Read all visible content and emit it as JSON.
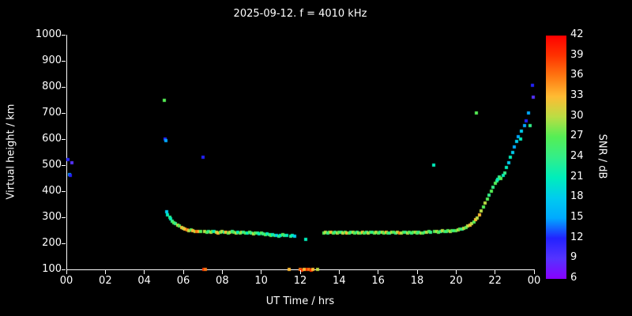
{
  "chart_data": {
    "type": "scatter",
    "title": "2025-09-12. f = 4010 kHz",
    "xlabel": "UT Time / hrs",
    "ylabel": "Virtual height / km",
    "colorbar_label": "SNR / dB",
    "xlim": [
      0,
      24
    ],
    "ylim": [
      100,
      1000
    ],
    "x_tick_values": [
      0,
      2,
      4,
      6,
      8,
      10,
      12,
      14,
      16,
      18,
      20,
      22,
      24
    ],
    "x_tick_labels": [
      "00",
      "02",
      "04",
      "06",
      "08",
      "10",
      "12",
      "14",
      "16",
      "18",
      "20",
      "22",
      "00"
    ],
    "y_tick_values": [
      100,
      200,
      300,
      400,
      500,
      600,
      700,
      800,
      900,
      1000
    ],
    "colorbar_tick_values": [
      6,
      9,
      12,
      15,
      18,
      21,
      24,
      27,
      30,
      33,
      36,
      39,
      42
    ],
    "colorbar_range": [
      6,
      42
    ],
    "background": "#000000",
    "axis_color": "#ffffff",
    "colormap": [
      {
        "v": 6,
        "c": "#8800ff"
      },
      {
        "v": 9,
        "c": "#5533ff"
      },
      {
        "v": 12,
        "c": "#2222ff"
      },
      {
        "v": 15,
        "c": "#00aaff"
      },
      {
        "v": 18,
        "c": "#00ccee"
      },
      {
        "v": 21,
        "c": "#00eebb"
      },
      {
        "v": 24,
        "c": "#33ee88"
      },
      {
        "v": 27,
        "c": "#55ee55"
      },
      {
        "v": 30,
        "c": "#bbdd44"
      },
      {
        "v": 33,
        "c": "#ffbb33"
      },
      {
        "v": 36,
        "c": "#ff7711"
      },
      {
        "v": 39,
        "c": "#ff3300"
      },
      {
        "v": 42,
        "c": "#ff0000"
      }
    ],
    "points": [
      [
        0.1,
        520,
        12
      ],
      [
        0.15,
        465,
        15
      ],
      [
        0.2,
        460,
        12
      ],
      [
        0.3,
        510,
        9
      ],
      [
        5.02,
        750,
        27
      ],
      [
        5.05,
        600,
        12
      ],
      [
        5.1,
        595,
        15
      ],
      [
        5.15,
        320,
        18
      ],
      [
        5.2,
        310,
        21
      ],
      [
        5.3,
        300,
        24
      ],
      [
        5.35,
        295,
        21
      ],
      [
        5.45,
        285,
        24
      ],
      [
        5.5,
        280,
        27
      ],
      [
        5.6,
        275,
        24
      ],
      [
        5.7,
        270,
        30
      ],
      [
        5.8,
        268,
        27
      ],
      [
        5.9,
        262,
        33
      ],
      [
        6.0,
        258,
        30
      ],
      [
        6.1,
        255,
        33
      ],
      [
        6.2,
        252,
        36
      ],
      [
        6.3,
        250,
        30
      ],
      [
        6.4,
        252,
        27
      ],
      [
        6.5,
        248,
        33
      ],
      [
        6.6,
        246,
        30
      ],
      [
        6.7,
        245,
        36
      ],
      [
        6.8,
        244,
        33
      ],
      [
        6.9,
        246,
        27
      ],
      [
        7.0,
        530,
        12
      ],
      [
        7.05,
        100,
        39
      ],
      [
        7.15,
        100,
        36
      ],
      [
        7.1,
        245,
        30
      ],
      [
        7.2,
        243,
        27
      ],
      [
        7.3,
        245,
        24
      ],
      [
        7.4,
        242,
        30
      ],
      [
        7.5,
        244,
        27
      ],
      [
        7.6,
        246,
        21
      ],
      [
        7.7,
        243,
        30
      ],
      [
        7.8,
        240,
        33
      ],
      [
        7.9,
        242,
        27
      ],
      [
        8.0,
        244,
        30
      ],
      [
        8.1,
        241,
        24
      ],
      [
        8.2,
        243,
        33
      ],
      [
        8.3,
        240,
        27
      ],
      [
        8.4,
        242,
        30
      ],
      [
        8.5,
        244,
        24
      ],
      [
        8.6,
        241,
        27
      ],
      [
        8.7,
        239,
        30
      ],
      [
        8.8,
        242,
        21
      ],
      [
        8.9,
        240,
        27
      ],
      [
        9.0,
        243,
        30
      ],
      [
        9.1,
        241,
        24
      ],
      [
        9.2,
        238,
        27
      ],
      [
        9.3,
        240,
        21
      ],
      [
        9.4,
        242,
        27
      ],
      [
        9.5,
        239,
        24
      ],
      [
        9.6,
        237,
        30
      ],
      [
        9.7,
        240,
        27
      ],
      [
        9.8,
        238,
        24
      ],
      [
        9.9,
        236,
        21
      ],
      [
        10.0,
        238,
        27
      ],
      [
        10.1,
        236,
        24
      ],
      [
        10.2,
        234,
        27
      ],
      [
        10.3,
        236,
        21
      ],
      [
        10.4,
        233,
        24
      ],
      [
        10.5,
        230,
        27
      ],
      [
        10.6,
        232,
        21
      ],
      [
        10.7,
        229,
        24
      ],
      [
        10.8,
        231,
        18
      ],
      [
        10.9,
        228,
        24
      ],
      [
        11.0,
        230,
        21
      ],
      [
        11.1,
        232,
        27
      ],
      [
        11.2,
        229,
        24
      ],
      [
        11.3,
        231,
        21
      ],
      [
        11.45,
        100,
        33
      ],
      [
        11.5,
        228,
        24
      ],
      [
        11.6,
        230,
        21
      ],
      [
        11.7,
        227,
        18
      ],
      [
        12.0,
        100,
        36
      ],
      [
        12.1,
        98,
        39
      ],
      [
        12.2,
        100,
        33
      ],
      [
        12.3,
        215,
        21
      ],
      [
        12.35,
        100,
        39
      ],
      [
        12.45,
        100,
        36
      ],
      [
        12.55,
        98,
        39
      ],
      [
        12.65,
        100,
        33
      ],
      [
        12.9,
        100,
        30
      ],
      [
        13.2,
        240,
        27
      ],
      [
        13.3,
        242,
        30
      ],
      [
        13.4,
        240,
        24
      ],
      [
        13.5,
        243,
        27
      ],
      [
        13.6,
        241,
        33
      ],
      [
        13.7,
        239,
        27
      ],
      [
        13.8,
        242,
        24
      ],
      [
        13.9,
        240,
        30
      ],
      [
        14.0,
        243,
        27
      ],
      [
        14.1,
        241,
        24
      ],
      [
        14.2,
        239,
        30
      ],
      [
        14.3,
        242,
        27
      ],
      [
        14.4,
        240,
        33
      ],
      [
        14.5,
        238,
        27
      ],
      [
        14.6,
        241,
        24
      ],
      [
        14.7,
        243,
        30
      ],
      [
        14.8,
        240,
        27
      ],
      [
        14.9,
        242,
        24
      ],
      [
        15.0,
        240,
        30
      ],
      [
        15.1,
        238,
        27
      ],
      [
        15.2,
        241,
        33
      ],
      [
        15.3,
        239,
        27
      ],
      [
        15.4,
        242,
        24
      ],
      [
        15.5,
        240,
        30
      ],
      [
        15.6,
        243,
        27
      ],
      [
        15.7,
        241,
        24
      ],
      [
        15.8,
        239,
        27
      ],
      [
        15.9,
        242,
        30
      ],
      [
        16.0,
        240,
        27
      ],
      [
        16.1,
        243,
        24
      ],
      [
        16.2,
        241,
        30
      ],
      [
        16.3,
        239,
        27
      ],
      [
        16.4,
        242,
        33
      ],
      [
        16.5,
        240,
        27
      ],
      [
        16.6,
        238,
        24
      ],
      [
        16.7,
        241,
        30
      ],
      [
        16.8,
        243,
        27
      ],
      [
        16.9,
        240,
        24
      ],
      [
        17.0,
        242,
        30
      ],
      [
        17.1,
        240,
        36
      ],
      [
        17.2,
        238,
        30
      ],
      [
        17.3,
        241,
        27
      ],
      [
        17.4,
        243,
        24
      ],
      [
        17.5,
        240,
        30
      ],
      [
        17.6,
        242,
        27
      ],
      [
        17.7,
        239,
        24
      ],
      [
        17.8,
        241,
        27
      ],
      [
        17.9,
        243,
        30
      ],
      [
        18.0,
        240,
        27
      ],
      [
        18.1,
        242,
        24
      ],
      [
        18.2,
        240,
        30
      ],
      [
        18.3,
        238,
        27
      ],
      [
        18.4,
        241,
        24
      ],
      [
        18.5,
        243,
        30
      ],
      [
        18.6,
        245,
        27
      ],
      [
        18.7,
        242,
        24
      ],
      [
        18.85,
        500,
        21
      ],
      [
        18.9,
        244,
        27
      ],
      [
        19.0,
        246,
        30
      ],
      [
        19.1,
        243,
        27
      ],
      [
        19.2,
        245,
        24
      ],
      [
        19.3,
        247,
        30
      ],
      [
        19.4,
        244,
        27
      ],
      [
        19.5,
        246,
        24
      ],
      [
        19.6,
        248,
        27
      ],
      [
        19.7,
        245,
        30
      ],
      [
        19.8,
        247,
        27
      ],
      [
        19.9,
        249,
        24
      ],
      [
        20.0,
        250,
        27
      ],
      [
        20.1,
        252,
        30
      ],
      [
        20.2,
        254,
        27
      ],
      [
        20.3,
        256,
        24
      ],
      [
        20.4,
        258,
        30
      ],
      [
        20.5,
        262,
        27
      ],
      [
        20.6,
        266,
        30
      ],
      [
        20.7,
        270,
        33
      ],
      [
        20.8,
        276,
        30
      ],
      [
        20.9,
        282,
        27
      ],
      [
        21.0,
        290,
        33
      ],
      [
        21.05,
        700,
        27
      ],
      [
        21.1,
        298,
        30
      ],
      [
        21.2,
        310,
        33
      ],
      [
        21.3,
        325,
        30
      ],
      [
        21.4,
        340,
        27
      ],
      [
        21.5,
        355,
        30
      ],
      [
        21.6,
        370,
        27
      ],
      [
        21.7,
        385,
        24
      ],
      [
        21.8,
        400,
        27
      ],
      [
        21.9,
        415,
        24
      ],
      [
        22.0,
        430,
        27
      ],
      [
        22.1,
        440,
        24
      ],
      [
        22.15,
        445,
        21
      ],
      [
        22.2,
        455,
        24
      ],
      [
        22.3,
        450,
        27
      ],
      [
        22.4,
        460,
        21
      ],
      [
        22.5,
        470,
        24
      ],
      [
        22.6,
        490,
        21
      ],
      [
        22.7,
        510,
        18
      ],
      [
        22.8,
        530,
        21
      ],
      [
        22.9,
        550,
        18
      ],
      [
        23.0,
        570,
        15
      ],
      [
        23.1,
        590,
        18
      ],
      [
        23.2,
        610,
        15
      ],
      [
        23.3,
        600,
        21
      ],
      [
        23.35,
        630,
        18
      ],
      [
        23.5,
        650,
        15
      ],
      [
        23.6,
        670,
        12
      ],
      [
        23.7,
        700,
        15
      ],
      [
        23.8,
        650,
        24
      ],
      [
        23.9,
        805,
        12
      ],
      [
        23.95,
        760,
        9
      ]
    ]
  }
}
